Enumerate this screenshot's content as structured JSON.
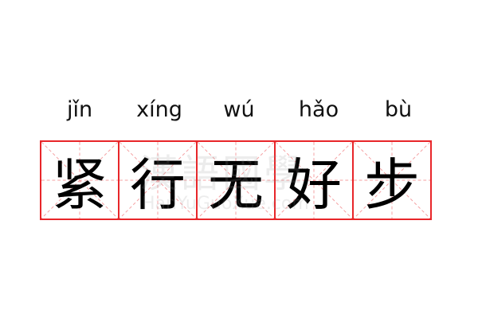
{
  "entries": [
    {
      "char": "紧",
      "pinyin": "jǐn"
    },
    {
      "char": "行",
      "pinyin": "xíng"
    },
    {
      "char": "无",
      "pinyin": "wú"
    },
    {
      "char": "好",
      "pinyin": "hǎo"
    },
    {
      "char": "步",
      "pinyin": "bù"
    }
  ],
  "watermark": {
    "cn": "漢語國學",
    "en": "HanYuGuoXue.com"
  },
  "colors": {
    "border": "#e8262a",
    "guide": "#f4a0a2"
  }
}
